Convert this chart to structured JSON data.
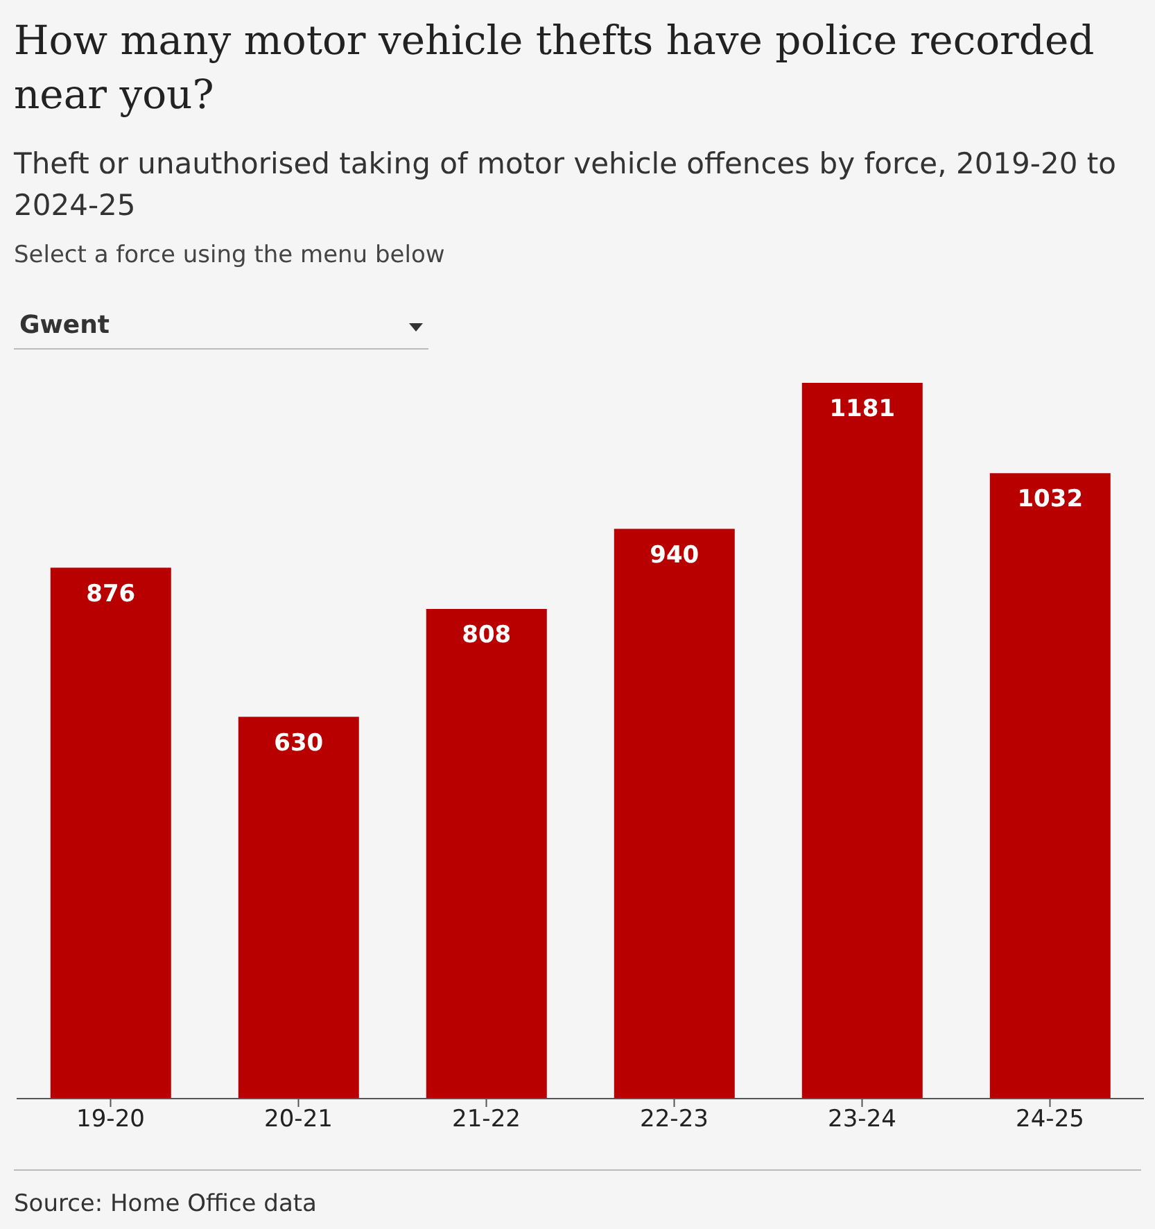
{
  "chart_data": {
    "type": "bar",
    "title": "How many motor vehicle thefts have police recorded near you?",
    "subtitle": "Theft or unauthorised taking of motor vehicle offences by force, 2019-20 to 2024-25",
    "annotations": [
      "Select a force using the menu below",
      "Gwent",
      "Source: Home Office data"
    ],
    "categories": [
      "19-20",
      "20-21",
      "21-22",
      "22-23",
      "23-24",
      "24-25"
    ],
    "values": [
      876,
      630,
      808,
      940,
      1181,
      1032
    ],
    "color": "#b80000",
    "data_labels": true,
    "grid": false,
    "legend": false
  }
}
